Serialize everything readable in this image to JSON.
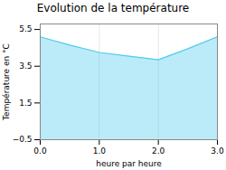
{
  "chart_data": {
    "type": "area",
    "title": "Evolution de la température",
    "x_label": "heure par heure",
    "y_label": "Température en °C",
    "x": [
      0,
      0.5,
      1.0,
      1.5,
      2.0,
      2.5,
      3.0
    ],
    "values": [
      5.1,
      4.65,
      4.25,
      4.05,
      3.85,
      4.45,
      5.1
    ],
    "color": "#55ccee",
    "xlim": [
      0,
      3.0
    ],
    "ylim": [
      -0.5,
      5.8
    ],
    "xticks": [
      0,
      1,
      2,
      3
    ],
    "yticks": [
      -0.5,
      1.5,
      3.5,
      5.5
    ],
    "grid": "x"
  }
}
